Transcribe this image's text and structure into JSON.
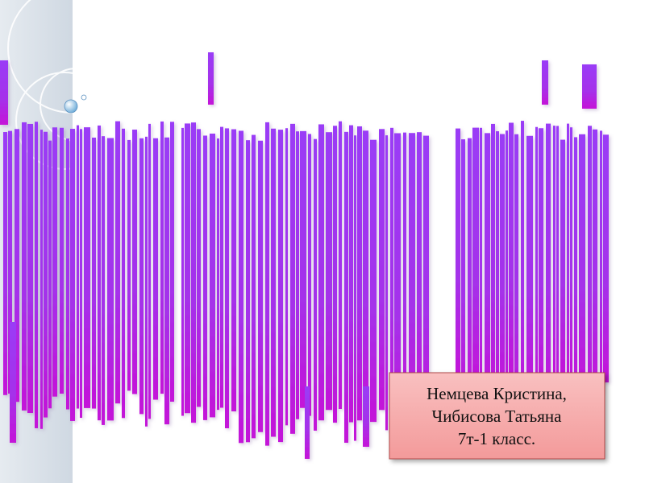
{
  "caption": {
    "lines": [
      "Немцева Кристина,",
      "Чибисова Татьяна",
      "7т-1 класс."
    ]
  }
}
